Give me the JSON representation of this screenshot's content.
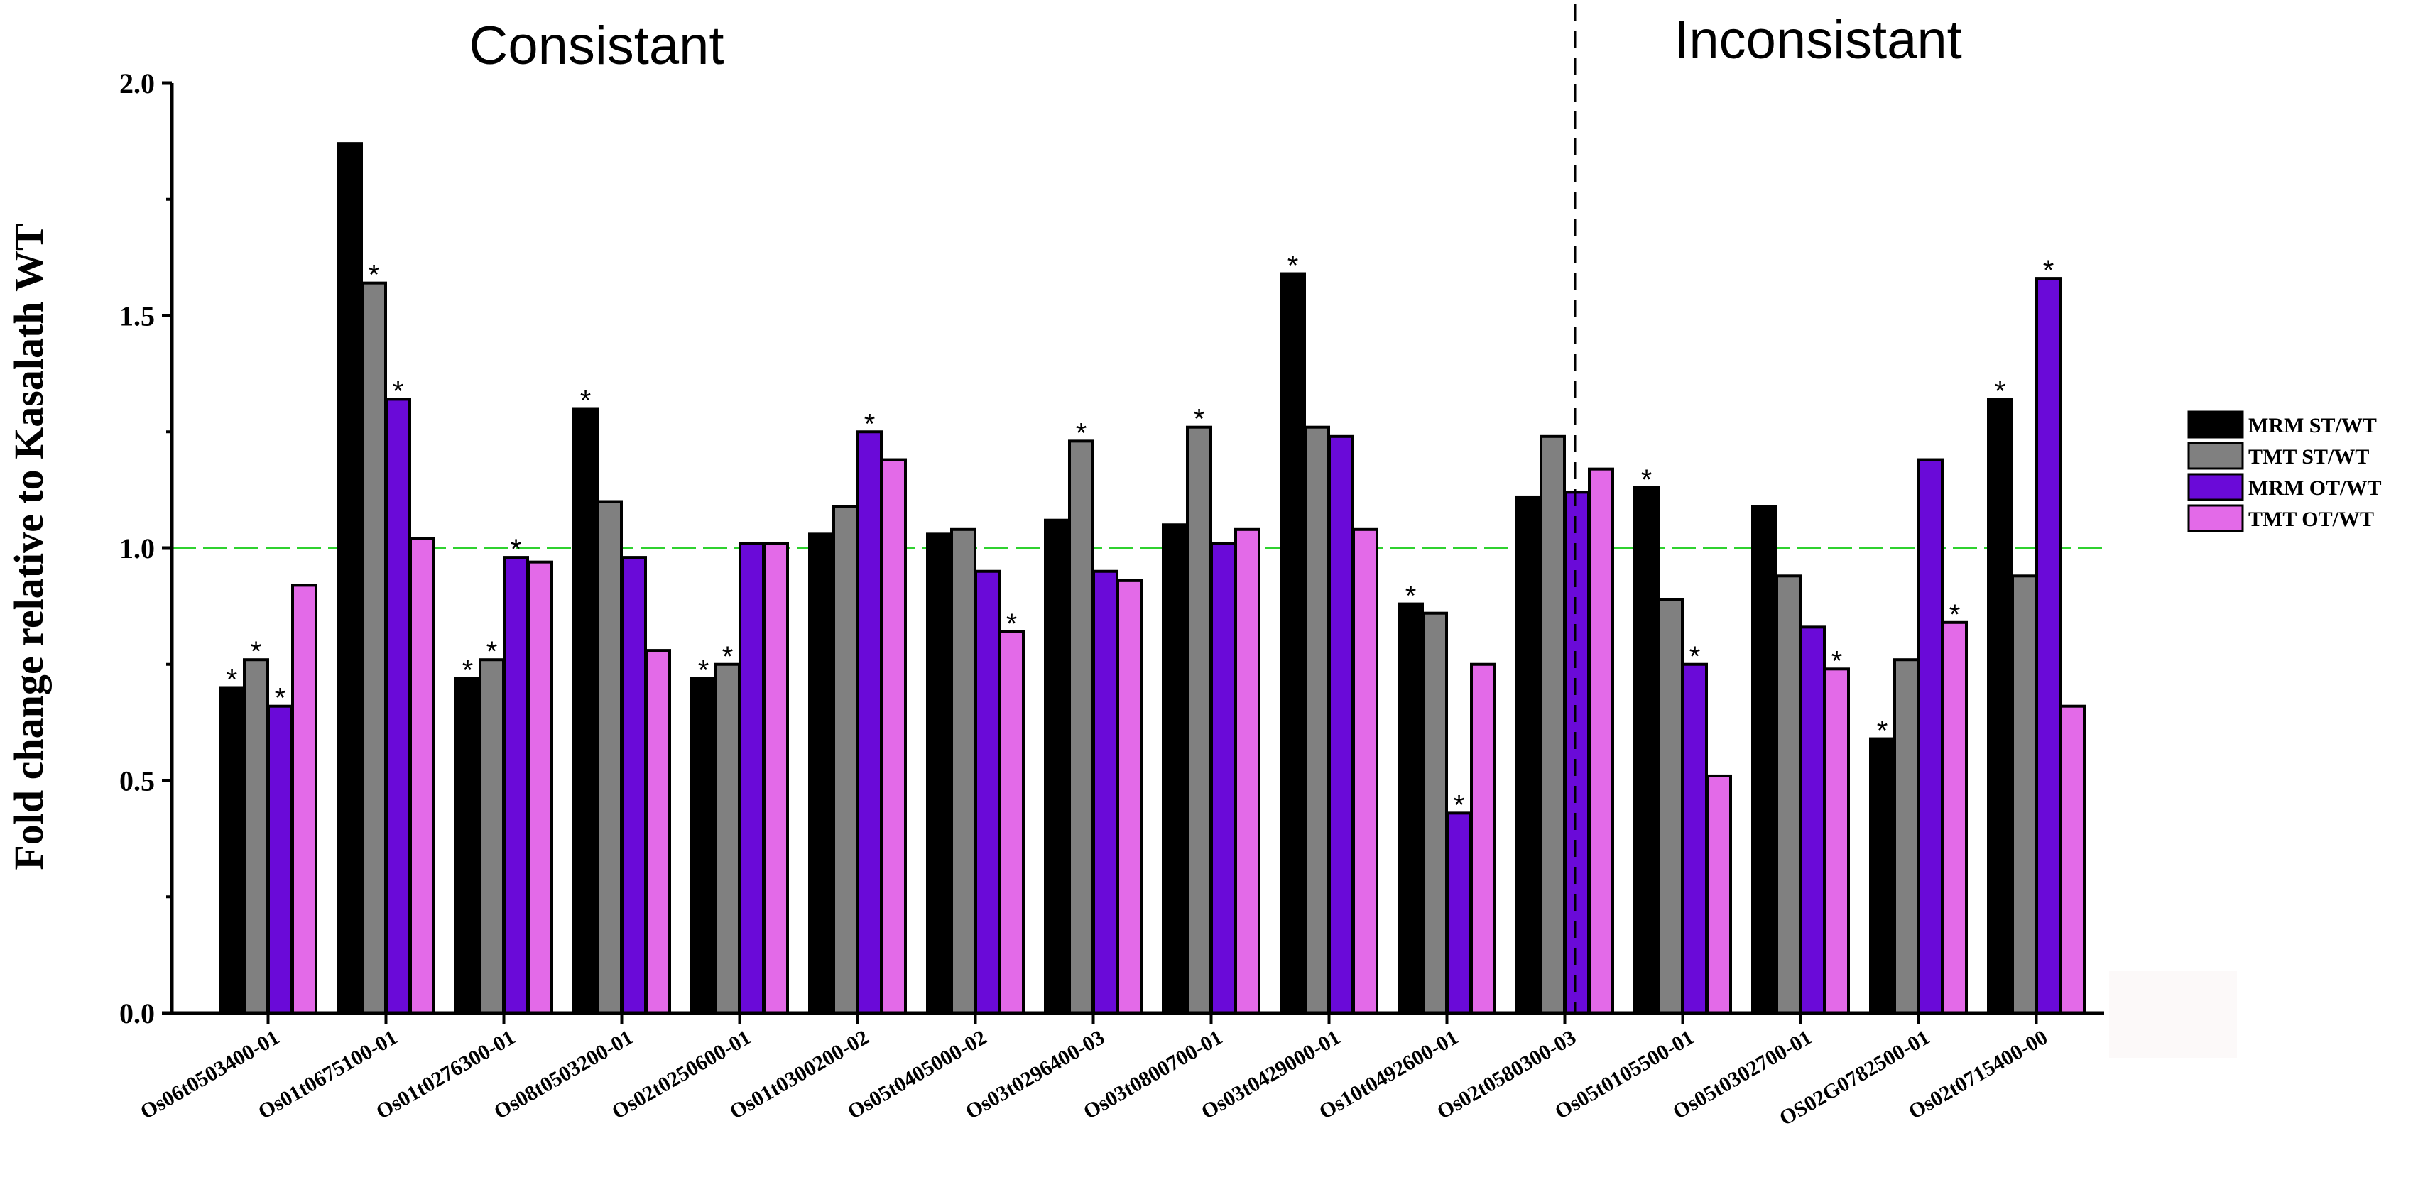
{
  "chart_data": {
    "type": "bar",
    "title_left": "Consistant",
    "title_right": "Inconsistant",
    "ylabel": "Fold change relative to Kasalath WT",
    "xlabel": "",
    "ylim": [
      0,
      2.0
    ],
    "yticks": [
      "0.0",
      "0.5",
      "1.0",
      "1.5",
      "2.0"
    ],
    "ytick_values": [
      0,
      0.5,
      1.0,
      1.5,
      2.0
    ],
    "reference_line": 1.0,
    "categories": [
      "Os06t0503400-01",
      "Os01t0675100-01",
      "Os01t0276300-01",
      "Os08t0503200-01",
      "Os02t0250600-01",
      "Os01t0300200-02",
      "Os05t0405000-02",
      "Os03t0296400-03",
      "Os03t0800700-01",
      "Os03t0429000-01",
      "Os10t0492600-01",
      "Os02t0580300-03",
      "Os05t0105500-01",
      "Os05t0302700-01",
      "OS02G0782500-01",
      "Os02t0715400-00"
    ],
    "consistent_count": 12,
    "series": [
      {
        "name": "MRM ST/WT",
        "color": "#000000",
        "values": [
          0.7,
          1.87,
          0.72,
          1.3,
          0.72,
          1.03,
          1.03,
          1.06,
          1.05,
          1.59,
          0.88,
          1.11,
          1.13,
          1.09,
          0.59,
          1.32
        ]
      },
      {
        "name": "TMT ST/WT",
        "color": "#808080",
        "values": [
          0.76,
          1.57,
          0.76,
          1.1,
          0.75,
          1.09,
          1.04,
          1.23,
          1.26,
          1.26,
          0.86,
          1.24,
          0.89,
          0.94,
          0.76,
          0.94
        ]
      },
      {
        "name": "MRM OT/WT",
        "color": "#6a0ad8",
        "values": [
          0.66,
          1.32,
          0.98,
          0.98,
          1.01,
          1.25,
          0.95,
          0.95,
          1.01,
          1.24,
          0.43,
          1.12,
          0.75,
          0.83,
          1.19,
          1.58
        ]
      },
      {
        "name": "TMT OT/WT",
        "color": "#e36ae8",
        "values": [
          0.92,
          1.02,
          0.97,
          0.78,
          1.01,
          1.19,
          0.82,
          0.93,
          1.04,
          1.04,
          0.75,
          1.17,
          0.51,
          0.74,
          0.84,
          0.66
        ]
      }
    ],
    "significance": [
      [
        true,
        true,
        true,
        false
      ],
      [
        false,
        true,
        true,
        false
      ],
      [
        true,
        true,
        true,
        false
      ],
      [
        true,
        false,
        false,
        false
      ],
      [
        true,
        true,
        false,
        false
      ],
      [
        false,
        false,
        true,
        false
      ],
      [
        false,
        false,
        false,
        true
      ],
      [
        false,
        true,
        false,
        false
      ],
      [
        false,
        true,
        false,
        false
      ],
      [
        true,
        false,
        false,
        false
      ],
      [
        true,
        false,
        true,
        false
      ],
      [
        false,
        false,
        false,
        false
      ],
      [
        true,
        false,
        true,
        false
      ],
      [
        false,
        false,
        false,
        true
      ],
      [
        true,
        false,
        false,
        true
      ],
      [
        true,
        false,
        true,
        false
      ]
    ],
    "significance_marker": "*",
    "legend_position": "right"
  }
}
